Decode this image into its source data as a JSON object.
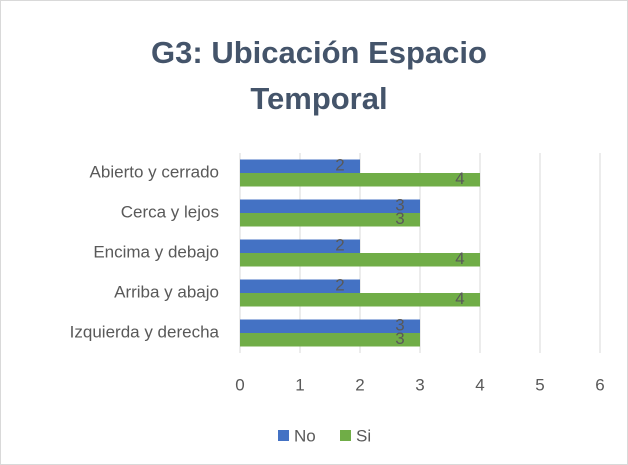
{
  "chart_data": {
    "type": "hbar",
    "title": "G3: Ubicación Espacio Temporal",
    "categories": [
      "Abierto y cerrado",
      "Cerca y lejos",
      "Encima y debajo",
      "Arriba y abajo",
      "Izquierda y derecha"
    ],
    "series": [
      {
        "name": "No",
        "color": "#4472c4",
        "values": [
          2,
          3,
          2,
          2,
          3
        ]
      },
      {
        "name": "Si",
        "color": "#70ad47",
        "values": [
          4,
          3,
          4,
          4,
          3
        ]
      }
    ],
    "xlim": [
      0,
      6
    ],
    "xticks": [
      0,
      1,
      2,
      3,
      4,
      5,
      6
    ],
    "grid": true,
    "legend": "bottom"
  }
}
